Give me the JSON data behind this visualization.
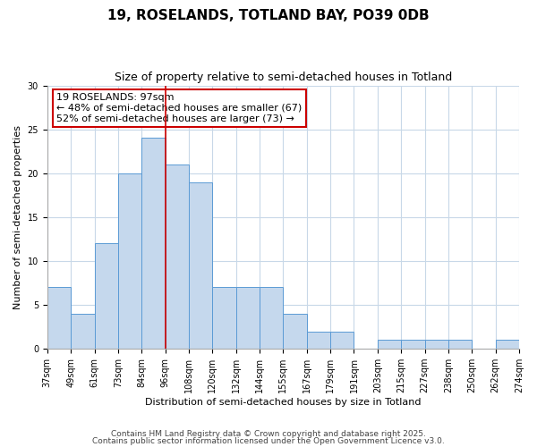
{
  "title": "19, ROSELANDS, TOTLAND BAY, PO39 0DB",
  "subtitle": "Size of property relative to semi-detached houses in Totland",
  "xlabel": "Distribution of semi-detached houses by size in Totland",
  "ylabel": "Number of semi-detached properties",
  "bin_labels": [
    "37sqm",
    "49sqm",
    "61sqm",
    "73sqm",
    "84sqm",
    "96sqm",
    "108sqm",
    "120sqm",
    "132sqm",
    "144sqm",
    "155sqm",
    "167sqm",
    "179sqm",
    "191sqm",
    "203sqm",
    "215sqm",
    "227sqm",
    "238sqm",
    "250sqm",
    "262sqm",
    "274sqm"
  ],
  "bar_heights": [
    7,
    4,
    12,
    20,
    24,
    21,
    19,
    7,
    7,
    7,
    4,
    2,
    2,
    0,
    1,
    1,
    1,
    1,
    0,
    1
  ],
  "bar_color": "#c5d8ed",
  "bar_edge_color": "#5b9bd5",
  "reference_line_x": 5,
  "reference_line_color": "#cc0000",
  "annotation_title": "19 ROSELANDS: 97sqm",
  "annotation_line1": "← 48% of semi-detached houses are smaller (67)",
  "annotation_line2": "52% of semi-detached houses are larger (73) →",
  "annotation_box_color": "#ffffff",
  "annotation_box_edge_color": "#cc0000",
  "ylim": [
    0,
    30
  ],
  "yticks": [
    0,
    5,
    10,
    15,
    20,
    25,
    30
  ],
  "footnote1": "Contains HM Land Registry data © Crown copyright and database right 2025.",
  "footnote2": "Contains public sector information licensed under the Open Government Licence v3.0.",
  "background_color": "#ffffff",
  "grid_color": "#c8d8e8",
  "title_fontsize": 11,
  "subtitle_fontsize": 9,
  "axis_label_fontsize": 8,
  "tick_fontsize": 7,
  "annotation_fontsize": 8,
  "footnote_fontsize": 6.5
}
